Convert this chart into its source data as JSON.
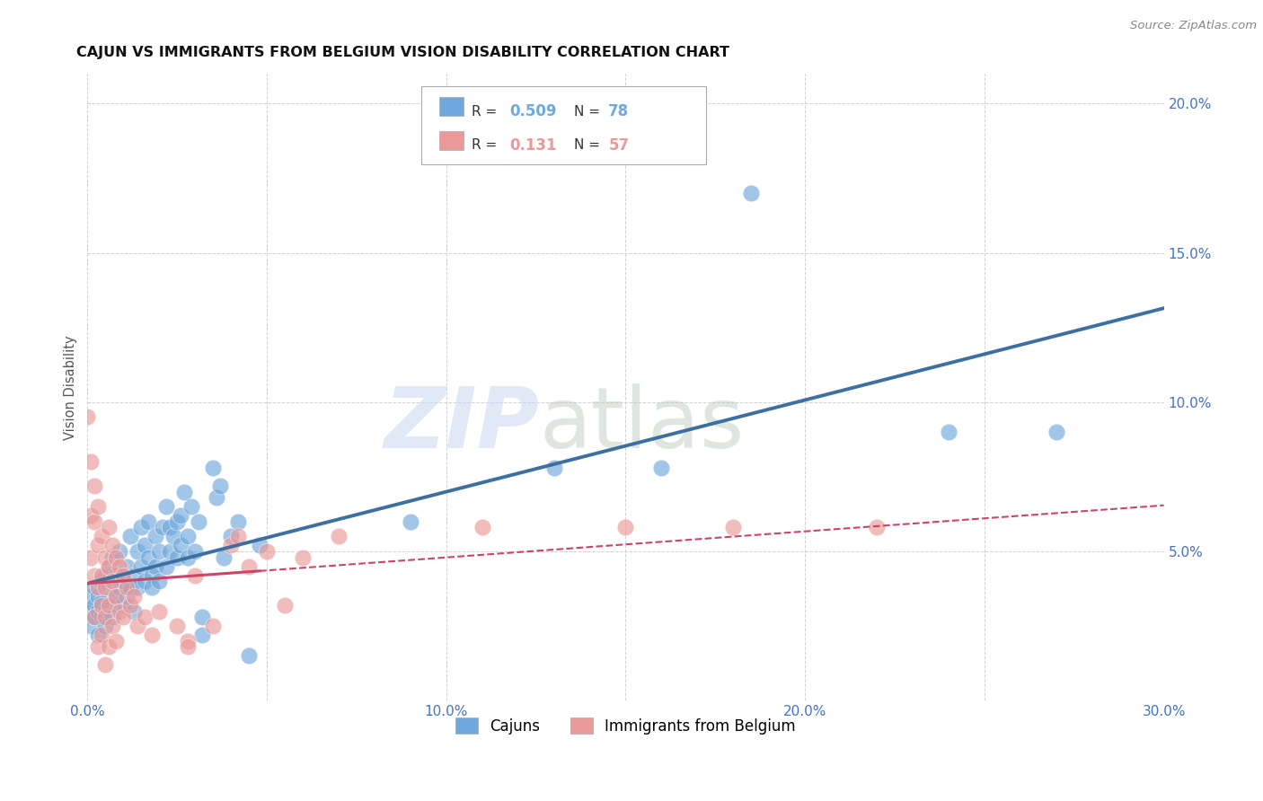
{
  "title": "CAJUN VS IMMIGRANTS FROM BELGIUM VISION DISABILITY CORRELATION CHART",
  "source": "Source: ZipAtlas.com",
  "ylabel": "Vision Disability",
  "xlim": [
    0.0,
    0.3
  ],
  "ylim": [
    0.0,
    0.21
  ],
  "xticks": [
    0.0,
    0.05,
    0.1,
    0.15,
    0.2,
    0.25,
    0.3
  ],
  "yticks": [
    0.0,
    0.05,
    0.1,
    0.15,
    0.2
  ],
  "xtick_labels": [
    "0.0%",
    "",
    "10.0%",
    "",
    "20.0%",
    "",
    "30.0%"
  ],
  "ytick_labels_right": [
    "",
    "5.0%",
    "10.0%",
    "15.0%",
    "20.0%"
  ],
  "cajun_color": "#6fa8dc",
  "belgium_color": "#ea9999",
  "cajun_line_color": "#3d6fa0",
  "belgium_line_color": "#cc4466",
  "cajun_R": 0.509,
  "cajun_N": 78,
  "belgium_R": 0.131,
  "belgium_N": 57,
  "legend_labels": [
    "Cajuns",
    "Immigrants from Belgium"
  ],
  "watermark_zip": "ZIP",
  "watermark_atlas": "atlas",
  "background_color": "#ffffff",
  "grid_color": "#cccccc",
  "cajun_scatter": [
    [
      0.001,
      0.03
    ],
    [
      0.001,
      0.035
    ],
    [
      0.001,
      0.025
    ],
    [
      0.002,
      0.032
    ],
    [
      0.002,
      0.028
    ],
    [
      0.002,
      0.038
    ],
    [
      0.003,
      0.03
    ],
    [
      0.003,
      0.035
    ],
    [
      0.003,
      0.022
    ],
    [
      0.004,
      0.033
    ],
    [
      0.004,
      0.028
    ],
    [
      0.004,
      0.04
    ],
    [
      0.005,
      0.03
    ],
    [
      0.005,
      0.042
    ],
    [
      0.005,
      0.025
    ],
    [
      0.006,
      0.038
    ],
    [
      0.006,
      0.045
    ],
    [
      0.007,
      0.032
    ],
    [
      0.007,
      0.048
    ],
    [
      0.007,
      0.028
    ],
    [
      0.008,
      0.035
    ],
    [
      0.008,
      0.042
    ],
    [
      0.009,
      0.038
    ],
    [
      0.009,
      0.05
    ],
    [
      0.01,
      0.04
    ],
    [
      0.01,
      0.032
    ],
    [
      0.011,
      0.045
    ],
    [
      0.011,
      0.035
    ],
    [
      0.012,
      0.038
    ],
    [
      0.012,
      0.055
    ],
    [
      0.013,
      0.042
    ],
    [
      0.013,
      0.03
    ],
    [
      0.014,
      0.05
    ],
    [
      0.014,
      0.038
    ],
    [
      0.015,
      0.045
    ],
    [
      0.015,
      0.058
    ],
    [
      0.016,
      0.04
    ],
    [
      0.016,
      0.052
    ],
    [
      0.017,
      0.048
    ],
    [
      0.017,
      0.06
    ],
    [
      0.018,
      0.042
    ],
    [
      0.018,
      0.038
    ],
    [
      0.019,
      0.055
    ],
    [
      0.019,
      0.045
    ],
    [
      0.02,
      0.05
    ],
    [
      0.02,
      0.04
    ],
    [
      0.021,
      0.058
    ],
    [
      0.022,
      0.045
    ],
    [
      0.022,
      0.065
    ],
    [
      0.023,
      0.05
    ],
    [
      0.023,
      0.058
    ],
    [
      0.024,
      0.055
    ],
    [
      0.025,
      0.06
    ],
    [
      0.025,
      0.048
    ],
    [
      0.026,
      0.062
    ],
    [
      0.026,
      0.052
    ],
    [
      0.027,
      0.07
    ],
    [
      0.028,
      0.055
    ],
    [
      0.028,
      0.048
    ],
    [
      0.029,
      0.065
    ],
    [
      0.03,
      0.05
    ],
    [
      0.031,
      0.06
    ],
    [
      0.032,
      0.022
    ],
    [
      0.032,
      0.028
    ],
    [
      0.035,
      0.078
    ],
    [
      0.036,
      0.068
    ],
    [
      0.037,
      0.072
    ],
    [
      0.038,
      0.048
    ],
    [
      0.04,
      0.055
    ],
    [
      0.042,
      0.06
    ],
    [
      0.045,
      0.015
    ],
    [
      0.048,
      0.052
    ],
    [
      0.09,
      0.06
    ],
    [
      0.13,
      0.078
    ],
    [
      0.16,
      0.078
    ],
    [
      0.185,
      0.17
    ],
    [
      0.24,
      0.09
    ],
    [
      0.27,
      0.09
    ]
  ],
  "belgium_scatter": [
    [
      0.0,
      0.095
    ],
    [
      0.001,
      0.08
    ],
    [
      0.001,
      0.062
    ],
    [
      0.001,
      0.048
    ],
    [
      0.002,
      0.072
    ],
    [
      0.002,
      0.06
    ],
    [
      0.002,
      0.042
    ],
    [
      0.002,
      0.028
    ],
    [
      0.003,
      0.065
    ],
    [
      0.003,
      0.052
    ],
    [
      0.003,
      0.038
    ],
    [
      0.003,
      0.018
    ],
    [
      0.004,
      0.055
    ],
    [
      0.004,
      0.042
    ],
    [
      0.004,
      0.032
    ],
    [
      0.004,
      0.022
    ],
    [
      0.005,
      0.048
    ],
    [
      0.005,
      0.038
    ],
    [
      0.005,
      0.028
    ],
    [
      0.005,
      0.012
    ],
    [
      0.006,
      0.058
    ],
    [
      0.006,
      0.045
    ],
    [
      0.006,
      0.032
    ],
    [
      0.006,
      0.018
    ],
    [
      0.007,
      0.052
    ],
    [
      0.007,
      0.04
    ],
    [
      0.007,
      0.025
    ],
    [
      0.008,
      0.048
    ],
    [
      0.008,
      0.035
    ],
    [
      0.008,
      0.02
    ],
    [
      0.009,
      0.045
    ],
    [
      0.009,
      0.03
    ],
    [
      0.01,
      0.042
    ],
    [
      0.01,
      0.028
    ],
    [
      0.011,
      0.038
    ],
    [
      0.012,
      0.032
    ],
    [
      0.013,
      0.035
    ],
    [
      0.014,
      0.025
    ],
    [
      0.016,
      0.028
    ],
    [
      0.018,
      0.022
    ],
    [
      0.02,
      0.03
    ],
    [
      0.025,
      0.025
    ],
    [
      0.028,
      0.02
    ],
    [
      0.03,
      0.042
    ],
    [
      0.035,
      0.025
    ],
    [
      0.04,
      0.052
    ],
    [
      0.042,
      0.055
    ],
    [
      0.045,
      0.045
    ],
    [
      0.05,
      0.05
    ],
    [
      0.055,
      0.032
    ],
    [
      0.06,
      0.048
    ],
    [
      0.07,
      0.055
    ],
    [
      0.11,
      0.058
    ],
    [
      0.15,
      0.058
    ],
    [
      0.18,
      0.058
    ],
    [
      0.22,
      0.058
    ],
    [
      0.028,
      0.018
    ]
  ]
}
